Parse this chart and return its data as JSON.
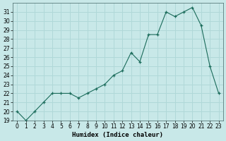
{
  "x": [
    0,
    1,
    2,
    3,
    4,
    5,
    6,
    7,
    8,
    9,
    10,
    11,
    12,
    13,
    14,
    15,
    16,
    17,
    18,
    19,
    20,
    21,
    22,
    23
  ],
  "y": [
    20,
    19,
    20,
    21,
    22,
    22,
    22,
    21.5,
    22,
    22.5,
    23,
    24,
    24.5,
    26.5,
    25.5,
    28.5,
    28.5,
    31,
    30.5,
    31,
    31.5,
    29.5,
    25,
    22
  ],
  "xlabel": "Humidex (Indice chaleur)",
  "ylabel": "",
  "line_color": "#1a6b5a",
  "marker": "+",
  "bg_color": "#c8e8e8",
  "grid_color": "#b0d8d8",
  "ylim": [
    19,
    32
  ],
  "xlim": [
    -0.5,
    23.5
  ],
  "yticks": [
    19,
    20,
    21,
    22,
    23,
    24,
    25,
    26,
    27,
    28,
    29,
    30,
    31
  ],
  "xtick_labels": [
    "0",
    "1",
    "2",
    "3",
    "4",
    "5",
    "6",
    "7",
    "8",
    "9",
    "10",
    "11",
    "12",
    "13",
    "14",
    "15",
    "16",
    "17",
    "18",
    "19",
    "20",
    "21",
    "22",
    "23"
  ],
  "ylabel_fontsize": 5.5,
  "xlabel_fontsize": 6.5,
  "tick_fontsize": 5.5
}
